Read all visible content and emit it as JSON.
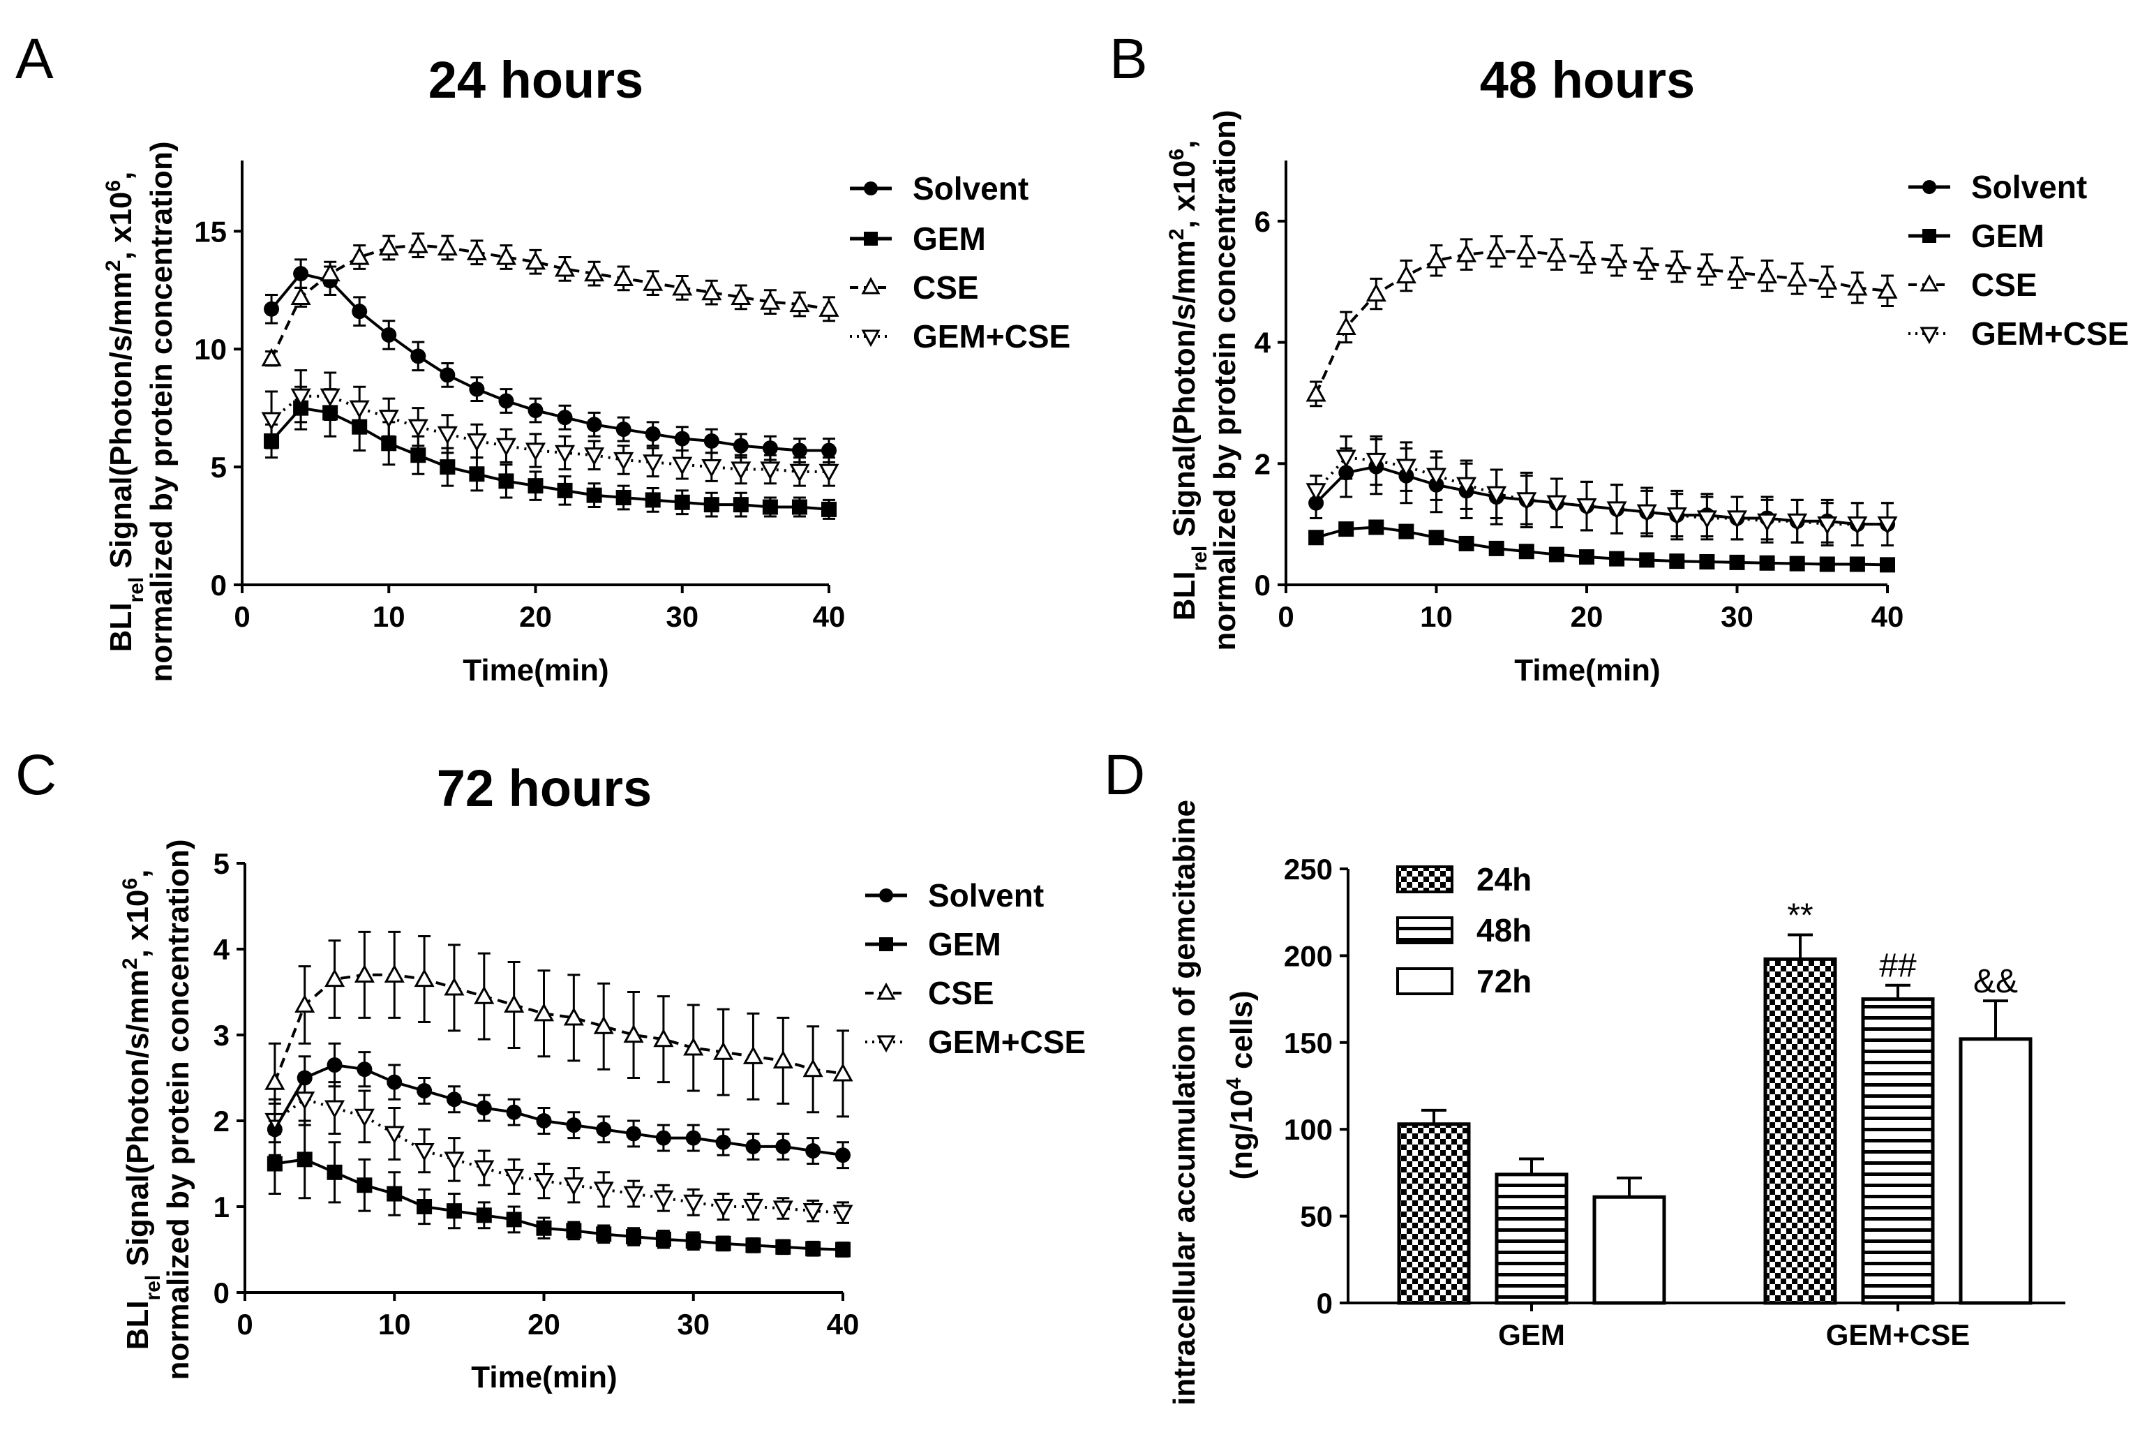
{
  "panels": [
    {
      "label": "A",
      "title": "24 hours",
      "xlabel": "Time(min)",
      "ylabel_line1": "BLI",
      "ylabel_sub": "rel",
      "ylabel_rest": " Signal(Photon/s/mm",
      "ylabel_sup2": "2",
      "ylabel_mid": ", x10",
      "ylabel_sup6": "6",
      "ylabel_end": ",",
      "ylabel_line2": "normalized by protein concentration)",
      "legend": [
        "Solvent",
        "GEM",
        "CSE",
        "GEM+CSE"
      ]
    },
    {
      "label": "B",
      "title": "48 hours",
      "xlabel": "Time(min)",
      "ylabel_line1": "BLI",
      "ylabel_sub": "rel",
      "ylabel_rest": " Signal(Photon/s/mm",
      "ylabel_sup2": "2",
      "ylabel_mid": ", x10",
      "ylabel_sup6": "6",
      "ylabel_end": ",",
      "ylabel_line2": "normalized by protein concentration)",
      "legend": [
        "Solvent",
        "GEM",
        "CSE",
        "GEM+CSE"
      ]
    },
    {
      "label": "C",
      "title": "72 hours",
      "xlabel": "Time(min)",
      "ylabel_line1": "BLI",
      "ylabel_sub": "rel",
      "ylabel_rest": " Signal(Photon/s/mm",
      "ylabel_sup2": "2",
      "ylabel_mid": ", x10",
      "ylabel_sup6": "6",
      "ylabel_end": ",",
      "ylabel_line2": "normalized by protein concentration)",
      "legend": [
        "Solvent",
        "GEM",
        "CSE",
        "GEM+CSE"
      ]
    },
    {
      "label": "D",
      "ylabel_line1": "intracellular accumulation of gemcitabine",
      "ylabel_line2a": "(ng/10",
      "ylabel_sup4": "4",
      "ylabel_line2b": " cells)",
      "legend": [
        "24h",
        "48h",
        "72h"
      ]
    }
  ],
  "chart_data": [
    {
      "type": "line",
      "title": "24 hours",
      "xlabel": "Time(min)",
      "ylabel": "BLIrel Signal(Photon/s/mm2, x10^6, normalized by protein concentration)",
      "xlim": [
        0,
        40
      ],
      "ylim": [
        0,
        18
      ],
      "xticks": [
        0,
        10,
        20,
        30,
        40
      ],
      "yticks": [
        0,
        5,
        10,
        15
      ],
      "x": [
        2,
        4,
        6,
        8,
        10,
        12,
        14,
        16,
        18,
        20,
        22,
        24,
        26,
        28,
        30,
        32,
        34,
        36,
        38,
        40
      ],
      "series": [
        {
          "name": "Solvent",
          "marker": "circle",
          "line": "solid",
          "values": [
            11.7,
            13.2,
            12.9,
            11.6,
            10.6,
            9.7,
            8.9,
            8.3,
            7.8,
            7.4,
            7.1,
            6.8,
            6.6,
            6.4,
            6.2,
            6.1,
            5.9,
            5.8,
            5.7,
            5.7
          ],
          "err": [
            0.6,
            0.6,
            0.6,
            0.6,
            0.6,
            0.6,
            0.5,
            0.5,
            0.5,
            0.5,
            0.5,
            0.5,
            0.5,
            0.5,
            0.5,
            0.5,
            0.5,
            0.5,
            0.5,
            0.5
          ]
        },
        {
          "name": "GEM",
          "marker": "square",
          "line": "solid",
          "values": [
            6.1,
            7.5,
            7.3,
            6.7,
            6.0,
            5.5,
            5.0,
            4.7,
            4.4,
            4.2,
            4.0,
            3.8,
            3.7,
            3.6,
            3.5,
            3.4,
            3.4,
            3.3,
            3.3,
            3.2
          ],
          "err": [
            0.7,
            0.9,
            1.0,
            1.0,
            0.9,
            0.8,
            0.8,
            0.7,
            0.7,
            0.6,
            0.6,
            0.5,
            0.5,
            0.5,
            0.5,
            0.5,
            0.5,
            0.4,
            0.4,
            0.4
          ]
        },
        {
          "name": "CSE",
          "marker": "triangle-up",
          "line": "dashed",
          "values": [
            9.6,
            12.2,
            13.2,
            13.9,
            14.3,
            14.4,
            14.3,
            14.1,
            13.9,
            13.7,
            13.4,
            13.2,
            13.0,
            12.8,
            12.6,
            12.4,
            12.2,
            12.0,
            11.9,
            11.7
          ],
          "err": [
            0.3,
            0.4,
            0.5,
            0.5,
            0.5,
            0.5,
            0.5,
            0.5,
            0.5,
            0.5,
            0.5,
            0.5,
            0.5,
            0.5,
            0.5,
            0.5,
            0.5,
            0.5,
            0.5,
            0.5
          ]
        },
        {
          "name": "GEM+CSE",
          "marker": "triangle-down",
          "line": "dotted",
          "values": [
            7.0,
            8.0,
            8.0,
            7.5,
            7.1,
            6.7,
            6.4,
            6.1,
            5.9,
            5.7,
            5.6,
            5.5,
            5.3,
            5.2,
            5.1,
            5.0,
            4.9,
            4.9,
            4.8,
            4.8
          ],
          "err": [
            1.2,
            1.1,
            1.0,
            0.9,
            0.8,
            0.8,
            0.8,
            0.7,
            0.7,
            0.7,
            0.7,
            0.6,
            0.6,
            0.6,
            0.6,
            0.6,
            0.6,
            0.6,
            0.6,
            0.6
          ]
        }
      ]
    },
    {
      "type": "line",
      "title": "48 hours",
      "xlabel": "Time(min)",
      "ylabel": "BLIrel Signal(Photon/s/mm2, x10^6, normalized by protein concentration)",
      "xlim": [
        0,
        40
      ],
      "ylim": [
        0,
        7
      ],
      "xticks": [
        0,
        10,
        20,
        30,
        40
      ],
      "yticks": [
        0,
        2,
        4,
        6
      ],
      "x": [
        2,
        4,
        6,
        8,
        10,
        12,
        14,
        16,
        18,
        20,
        22,
        24,
        26,
        28,
        30,
        32,
        34,
        36,
        38,
        40
      ],
      "series": [
        {
          "name": "Solvent",
          "marker": "circle",
          "line": "solid",
          "values": [
            1.35,
            1.85,
            1.95,
            1.8,
            1.65,
            1.55,
            1.45,
            1.4,
            1.35,
            1.3,
            1.25,
            1.2,
            1.15,
            1.15,
            1.1,
            1.1,
            1.05,
            1.05,
            1.0,
            1.0
          ],
          "err": [
            0.25,
            0.4,
            0.45,
            0.45,
            0.45,
            0.45,
            0.45,
            0.45,
            0.4,
            0.4,
            0.4,
            0.4,
            0.4,
            0.35,
            0.35,
            0.35,
            0.35,
            0.35,
            0.35,
            0.35
          ]
        },
        {
          "name": "GEM",
          "marker": "square",
          "line": "solid",
          "values": [
            0.78,
            0.92,
            0.95,
            0.88,
            0.78,
            0.68,
            0.6,
            0.55,
            0.5,
            0.46,
            0.43,
            0.41,
            0.39,
            0.38,
            0.37,
            0.36,
            0.35,
            0.34,
            0.34,
            0.33
          ],
          "err": [
            0.08,
            0.08,
            0.08,
            0.07,
            0.07,
            0.06,
            0.06,
            0.05,
            0.05,
            0.05,
            0.05,
            0.05,
            0.05,
            0.05,
            0.05,
            0.05,
            0.05,
            0.05,
            0.05,
            0.05
          ]
        },
        {
          "name": "CSE",
          "marker": "triangle-up",
          "line": "dashed",
          "values": [
            3.15,
            4.25,
            4.8,
            5.1,
            5.35,
            5.45,
            5.5,
            5.5,
            5.45,
            5.4,
            5.35,
            5.3,
            5.25,
            5.2,
            5.15,
            5.1,
            5.05,
            5.0,
            4.9,
            4.85
          ],
          "err": [
            0.2,
            0.25,
            0.25,
            0.25,
            0.25,
            0.25,
            0.25,
            0.25,
            0.25,
            0.25,
            0.25,
            0.25,
            0.25,
            0.25,
            0.25,
            0.25,
            0.25,
            0.25,
            0.25,
            0.25
          ]
        },
        {
          "name": "GEM+CSE",
          "marker": "triangle-down",
          "line": "dotted",
          "values": [
            1.55,
            2.1,
            2.05,
            1.95,
            1.8,
            1.65,
            1.5,
            1.4,
            1.35,
            1.3,
            1.25,
            1.2,
            1.15,
            1.1,
            1.1,
            1.05,
            1.05,
            1.0,
            1.0,
            1.0
          ],
          "err": [
            0.25,
            0.35,
            0.4,
            0.4,
            0.4,
            0.4,
            0.4,
            0.4,
            0.4,
            0.4,
            0.4,
            0.35,
            0.35,
            0.35,
            0.35,
            0.35,
            0.35,
            0.35,
            0.35,
            0.35
          ]
        }
      ]
    },
    {
      "type": "line",
      "title": "72 hours",
      "xlabel": "Time(min)",
      "ylabel": "BLIrel Signal(Photon/s/mm2, x10^6, normalized by protein concentration)",
      "xlim": [
        0,
        40
      ],
      "ylim": [
        0,
        5
      ],
      "xticks": [
        0,
        10,
        20,
        30,
        40
      ],
      "yticks": [
        0,
        1,
        2,
        3,
        4,
        5
      ],
      "x": [
        2,
        4,
        6,
        8,
        10,
        12,
        14,
        16,
        18,
        20,
        22,
        24,
        26,
        28,
        30,
        32,
        34,
        36,
        38,
        40
      ],
      "series": [
        {
          "name": "Solvent",
          "marker": "circle",
          "line": "solid",
          "values": [
            1.9,
            2.5,
            2.65,
            2.6,
            2.45,
            2.35,
            2.25,
            2.15,
            2.1,
            2.0,
            1.95,
            1.9,
            1.85,
            1.8,
            1.8,
            1.75,
            1.7,
            1.7,
            1.65,
            1.6
          ],
          "err": [
            0.3,
            0.25,
            0.25,
            0.2,
            0.2,
            0.15,
            0.15,
            0.15,
            0.15,
            0.15,
            0.15,
            0.15,
            0.15,
            0.15,
            0.15,
            0.15,
            0.15,
            0.15,
            0.15,
            0.15
          ]
        },
        {
          "name": "GEM",
          "marker": "square",
          "line": "solid",
          "values": [
            1.5,
            1.55,
            1.4,
            1.25,
            1.15,
            1.0,
            0.95,
            0.9,
            0.85,
            0.75,
            0.72,
            0.68,
            0.65,
            0.62,
            0.6,
            0.57,
            0.55,
            0.53,
            0.51,
            0.5
          ],
          "err": [
            0.35,
            0.45,
            0.35,
            0.3,
            0.25,
            0.2,
            0.2,
            0.15,
            0.15,
            0.12,
            0.1,
            0.1,
            0.1,
            0.1,
            0.1,
            0.08,
            0.08,
            0.08,
            0.08,
            0.08
          ]
        },
        {
          "name": "GEM+CSE",
          "marker": "triangle-down",
          "line": "dotted",
          "values": [
            2.0,
            2.25,
            2.15,
            2.05,
            1.85,
            1.65,
            1.55,
            1.45,
            1.35,
            1.3,
            1.25,
            1.2,
            1.15,
            1.1,
            1.05,
            1.0,
            1.0,
            0.98,
            0.95,
            0.93
          ],
          "err": [
            0.25,
            0.3,
            0.3,
            0.3,
            0.3,
            0.25,
            0.25,
            0.2,
            0.2,
            0.2,
            0.2,
            0.2,
            0.15,
            0.15,
            0.15,
            0.15,
            0.15,
            0.12,
            0.12,
            0.12
          ]
        },
        {
          "name": "CSE",
          "marker": "triangle-up",
          "line": "dashed",
          "values": [
            2.45,
            3.35,
            3.65,
            3.7,
            3.7,
            3.65,
            3.55,
            3.45,
            3.35,
            3.25,
            3.2,
            3.1,
            3.0,
            2.95,
            2.85,
            2.8,
            2.75,
            2.7,
            2.6,
            2.55
          ],
          "err": [
            0.45,
            0.45,
            0.45,
            0.5,
            0.5,
            0.5,
            0.5,
            0.5,
            0.5,
            0.5,
            0.5,
            0.5,
            0.5,
            0.5,
            0.5,
            0.5,
            0.5,
            0.5,
            0.5,
            0.5
          ]
        }
      ]
    },
    {
      "type": "bar",
      "ylabel": "intracellular accumulation of gemcitabine (ng/10^4 cells)",
      "categories": [
        "GEM",
        "GEM+CSE"
      ],
      "ylim": [
        0,
        250
      ],
      "yticks": [
        0,
        50,
        100,
        150,
        200,
        250
      ],
      "series": [
        {
          "name": "24h",
          "pattern": "checker",
          "values": [
            103,
            198
          ],
          "err": [
            8,
            14
          ]
        },
        {
          "name": "48h",
          "pattern": "stripes",
          "values": [
            74,
            175
          ],
          "err": [
            9,
            8
          ]
        },
        {
          "name": "72h",
          "pattern": "open",
          "values": [
            61,
            152
          ],
          "err": [
            11,
            22
          ]
        }
      ],
      "annotations": [
        {
          "category": "GEM+CSE",
          "series": "24h",
          "text": "**"
        },
        {
          "category": "GEM+CSE",
          "series": "48h",
          "text": "##"
        },
        {
          "category": "GEM+CSE",
          "series": "72h",
          "text": "&&"
        }
      ]
    }
  ]
}
